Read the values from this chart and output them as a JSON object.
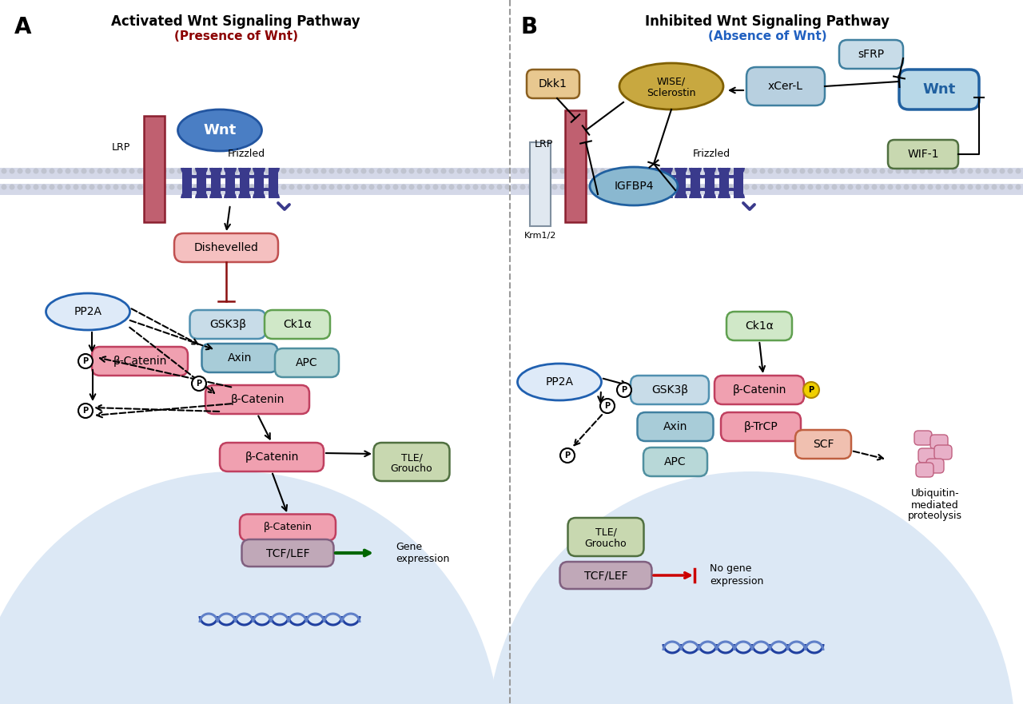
{
  "panel_A_title": "Activated Wnt Signaling Pathway",
  "panel_A_subtitle": "(Presence of Wnt)",
  "panel_B_title": "Inhibited Wnt Signaling Pathway",
  "panel_B_subtitle": "(Absence of Wnt)",
  "bg_color": "#ffffff",
  "cell_interior_color": "#dce8f5",
  "frizzled_color": "#3a3a8c",
  "LRP_color": "#c06070",
  "wnt_A_color": "#4a7ec4",
  "wnt_B_fill": "#b8d8e8",
  "wnt_B_ec": "#2060a0",
  "dishevelled_color": "#f5c0c0",
  "dishevelled_ec": "#c05050",
  "gsk3b_color": "#c8dce8",
  "gsk3b_ec": "#5090b0",
  "ck1a_color": "#d0e8c8",
  "ck1a_ec": "#60a050",
  "axin_color": "#a8ccd8",
  "axin_ec": "#4080a0",
  "apc_color": "#b8d8d8",
  "apc_ec": "#5090a0",
  "bcatenin_color": "#f0a0b0",
  "bcatenin_ec": "#c04060",
  "pp2a_fill": "#deeaf8",
  "pp2a_ec": "#2060b0",
  "tle_color": "#c8d8b0",
  "tle_ec": "#507040",
  "tcflef_color": "#c0a8b8",
  "tcflef_ec": "#806080",
  "dkk1_color": "#e8c890",
  "dkk1_ec": "#8b6020",
  "wise_color": "#c8a840",
  "wise_ec": "#806000",
  "xcerl_color": "#b8d0e0",
  "xcerl_ec": "#4080a0",
  "sfrp_color": "#c8dce8",
  "sfrp_ec": "#4080a0",
  "igfbp4_color": "#8ab8d0",
  "igfbp4_ec": "#2060a0",
  "wif1_color": "#c8d8b0",
  "wif1_ec": "#507040",
  "krm_color": "#e0e8f0",
  "krm_ec": "#8090a0",
  "btrcp_color": "#f0a0b0",
  "btrcp_ec": "#c04060",
  "scf_color": "#f0c0b0",
  "scf_ec": "#c06040",
  "phospho_color": "#f0d000",
  "phospho_ec": "#b08800",
  "mem_bead_color": "#c0c4d0",
  "mem_band_color": "#d4d8e8",
  "divider_color": "#999999",
  "cell_arc_color": "#b0b0b0",
  "dna_color1": "#2040a0",
  "dna_color2": "#6080c8"
}
